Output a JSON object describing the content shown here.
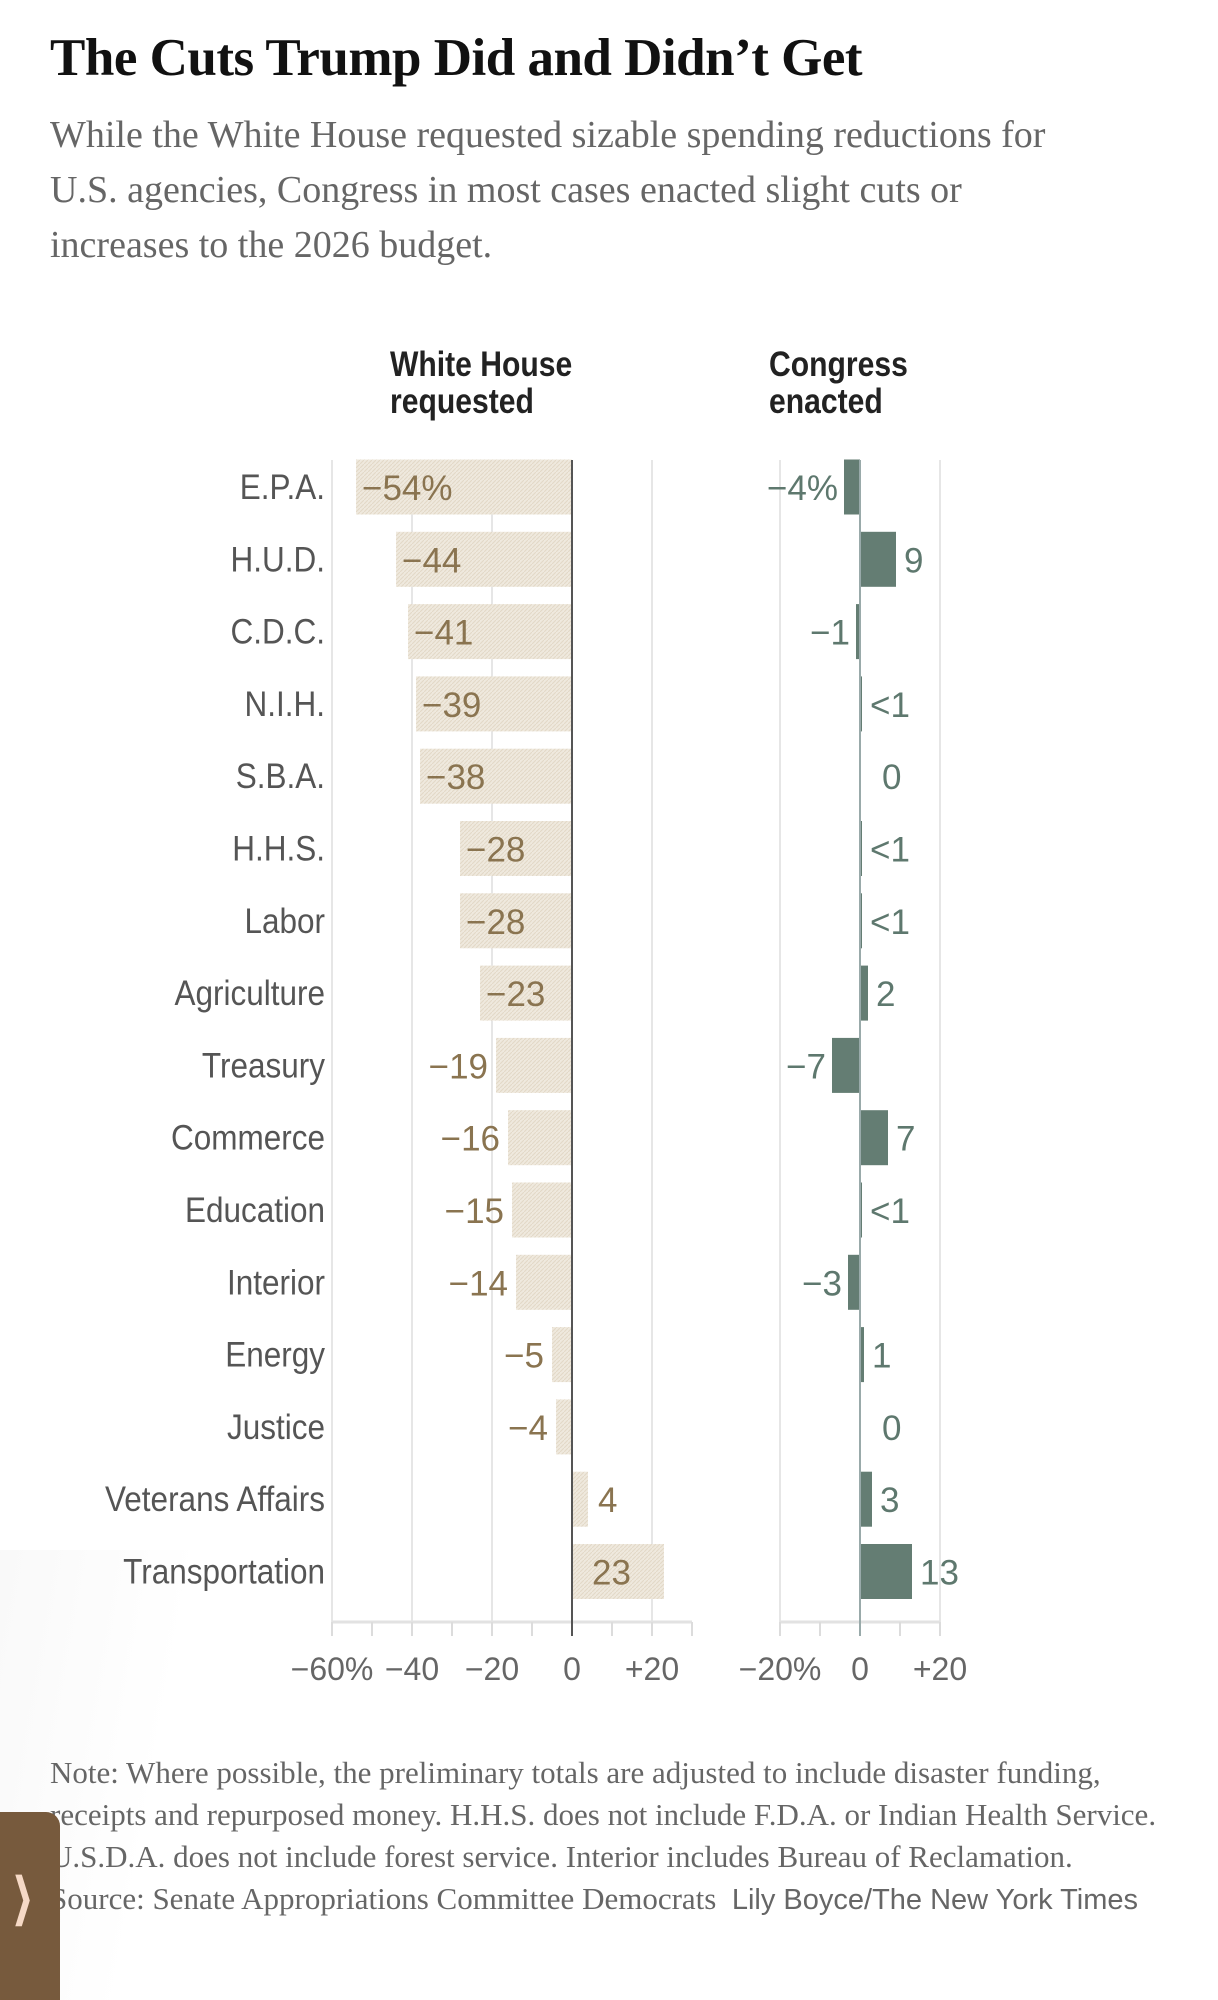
{
  "header": {
    "title": "The Cuts Trump Did and Didn’t Get",
    "subtitle": "While the White House requested sizable spending reductions for U.S. agencies, Congress in most cases enacted slight cuts or increases to the 2026 budget."
  },
  "colors": {
    "requested_bar": "#ece4d6",
    "requested_text": "#8a7450",
    "enacted_bar": "#647d73",
    "enacted_text": "#5e786e",
    "label": "#555555",
    "side_tab": "#775a3d"
  },
  "chart_data": [
    {
      "type": "bar",
      "orientation": "horizontal",
      "title": "White House requested",
      "categories": [
        "E.P.A.",
        "H.U.D.",
        "C.D.C.",
        "N.I.H.",
        "S.B.A.",
        "H.H.S.",
        "Labor",
        "Agriculture",
        "Treasury",
        "Commerce",
        "Education",
        "Interior",
        "Energy",
        "Justice",
        "Veterans Affairs",
        "Transportation"
      ],
      "values": [
        -54,
        -44,
        -41,
        -39,
        -38,
        -28,
        -28,
        -23,
        -19,
        -16,
        -15,
        -14,
        -5,
        -4,
        4,
        23
      ],
      "data_labels": [
        "−54%",
        "−44",
        "−41",
        "−39",
        "−38",
        "−28",
        "−28",
        "−23",
        "−19",
        "−16",
        "−15",
        "−14",
        "−5",
        "−4",
        "4",
        "23"
      ],
      "xlim": [
        -60,
        30
      ],
      "tick_values": [
        -60,
        -40,
        -20,
        0,
        20
      ],
      "tick_labels": [
        "−60%",
        "−40",
        "−20",
        "0",
        "+20"
      ],
      "grid": true
    },
    {
      "type": "bar",
      "orientation": "horizontal",
      "title": "Congress enacted",
      "categories": [
        "E.P.A.",
        "H.U.D.",
        "C.D.C.",
        "N.I.H.",
        "S.B.A.",
        "H.H.S.",
        "Labor",
        "Agriculture",
        "Treasury",
        "Commerce",
        "Education",
        "Interior",
        "Energy",
        "Justice",
        "Veterans Affairs",
        "Transportation"
      ],
      "values": [
        -4,
        9,
        -1,
        0.5,
        0,
        0.5,
        0.5,
        2,
        -7,
        7,
        0.5,
        -3,
        1,
        0,
        3,
        13
      ],
      "data_labels": [
        "−4%",
        "9",
        "−1",
        "<1",
        "0",
        "<1",
        "<1",
        "2",
        "−7",
        "7",
        "<1",
        "−3",
        "1",
        "0",
        "3",
        "13"
      ],
      "xlim": [
        -20,
        20
      ],
      "tick_values": [
        -20,
        0,
        20
      ],
      "tick_labels": [
        "−20%",
        "0",
        "+20"
      ],
      "grid": true
    }
  ],
  "columns": {
    "left_head_1": "White House",
    "left_head_2": "requested",
    "right_head_1": "Congress",
    "right_head_2": "enacted"
  },
  "footer": {
    "note": "Note: Where possible, the preliminary totals are adjusted to include disaster funding, receipts and repurposed money. H.H.S. does not include F.D.A. or Indian Health Service. U.S.D.A. does not include forest service. Interior includes Bureau of Reclamation.  Source: Senate Appropriations Committee Democrats",
    "credit": "Lily Boyce/The New York Times"
  },
  "side_tab": {
    "icon": "chevron-right-icon",
    "glyph": "⟩"
  }
}
